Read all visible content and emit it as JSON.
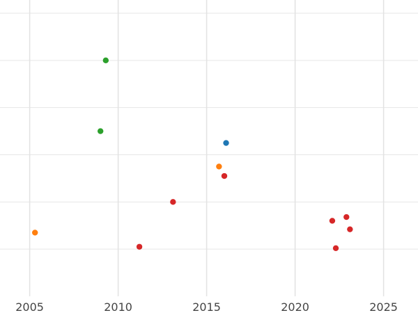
{
  "chart_data": {
    "type": "scatter",
    "title": "",
    "xlabel": "",
    "ylabel": "",
    "xlim": [
      2005.0,
      2026.8
    ],
    "ylim": [
      0,
      6.0
    ],
    "x_ticks": [
      2005,
      2010,
      2015,
      2020,
      2025
    ],
    "x_tick_labels": [
      "2005",
      "2010",
      "2015",
      "2020",
      "2025"
    ],
    "y_gridlines": [
      1,
      2,
      3,
      4,
      5,
      6
    ],
    "y_tick_labels_visible": false,
    "grid": true,
    "legend": "none",
    "colors": {
      "green": "#2ca02c",
      "blue": "#1f77b4",
      "orange": "#ff7f0e",
      "red": "#d62728"
    },
    "points": [
      {
        "x": 2009.3,
        "y": 5.0,
        "color": "green"
      },
      {
        "x": 2009.0,
        "y": 3.5,
        "color": "green"
      },
      {
        "x": 2016.1,
        "y": 3.25,
        "color": "blue"
      },
      {
        "x": 2015.7,
        "y": 2.75,
        "color": "orange"
      },
      {
        "x": 2005.3,
        "y": 1.35,
        "color": "orange"
      },
      {
        "x": 2016.0,
        "y": 2.55,
        "color": "red"
      },
      {
        "x": 2013.1,
        "y": 2.0,
        "color": "red"
      },
      {
        "x": 2011.2,
        "y": 1.05,
        "color": "red"
      },
      {
        "x": 2022.1,
        "y": 1.6,
        "color": "red"
      },
      {
        "x": 2022.9,
        "y": 1.68,
        "color": "red"
      },
      {
        "x": 2023.1,
        "y": 1.42,
        "color": "red"
      },
      {
        "x": 2022.3,
        "y": 1.02,
        "color": "red"
      }
    ]
  }
}
